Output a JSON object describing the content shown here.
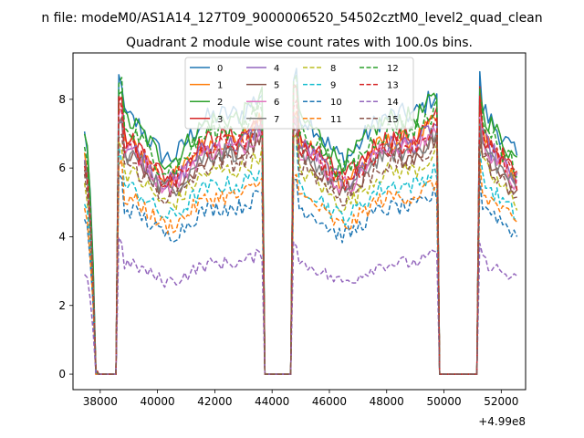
{
  "chart_data": {
    "type": "line",
    "suptitle": "n file: modeM0/AS1A14_127T09_9000006520_54502cztM0_level2_quad_clean",
    "title": "Quadrant 2 module wise count rates with 100.0s bins.",
    "xlabel": "",
    "ylabel": "",
    "x_offset_label": "+4.99e8",
    "xlim": [
      37050,
      52850
    ],
    "ylim": [
      -0.45,
      9.35
    ],
    "xticks": [
      38000,
      40000,
      42000,
      44000,
      46000,
      48000,
      50000,
      52000
    ],
    "xtick_labels": [
      "38000",
      "40000",
      "42000",
      "44000",
      "46000",
      "48000",
      "50000",
      "52000"
    ],
    "yticks": [
      0,
      2,
      4,
      6,
      8
    ],
    "ytick_labels": [
      "0",
      "2",
      "4",
      "6",
      "8"
    ],
    "legend_position": "upper-center",
    "series": [
      {
        "name": "0",
        "color": "#1f77b4",
        "linestyle": "solid",
        "level": 7.0,
        "spike": 8.6
      },
      {
        "name": "1",
        "color": "#ff7f0e",
        "linestyle": "solid",
        "level": 6.3,
        "spike": 7.6
      },
      {
        "name": "2",
        "color": "#2ca02c",
        "linestyle": "solid",
        "level": 6.9,
        "spike": 8.4
      },
      {
        "name": "3",
        "color": "#d62728",
        "linestyle": "solid",
        "level": 6.4,
        "spike": 8.2
      },
      {
        "name": "4",
        "color": "#9467bd",
        "linestyle": "solid",
        "level": 6.2,
        "spike": 7.4
      },
      {
        "name": "5",
        "color": "#8c564b",
        "linestyle": "solid",
        "level": 5.9,
        "spike": 7.2
      },
      {
        "name": "6",
        "color": "#e377c2",
        "linestyle": "solid",
        "level": 6.1,
        "spike": 7.5
      },
      {
        "name": "7",
        "color": "#7f7f7f",
        "linestyle": "solid",
        "level": 6.0,
        "spike": 7.3
      },
      {
        "name": "8",
        "color": "#bcbd22",
        "linestyle": "dashed",
        "level": 5.5,
        "spike": 6.8
      },
      {
        "name": "9",
        "color": "#17becf",
        "linestyle": "dashed",
        "level": 5.1,
        "spike": 6.4
      },
      {
        "name": "10",
        "color": "#1f77b4",
        "linestyle": "dashed",
        "level": 4.5,
        "spike": 5.7
      },
      {
        "name": "11",
        "color": "#ff7f0e",
        "linestyle": "dashed",
        "level": 4.8,
        "spike": 6.0
      },
      {
        "name": "12",
        "color": "#2ca02c",
        "linestyle": "dashed",
        "level": 6.6,
        "spike": 8.6
      },
      {
        "name": "13",
        "color": "#d62728",
        "linestyle": "dashed",
        "level": 6.2,
        "spike": 8.0
      },
      {
        "name": "14",
        "color": "#9467bd",
        "linestyle": "dashed",
        "level": 3.0,
        "spike": 3.9
      },
      {
        "name": "15",
        "color": "#8c564b",
        "linestyle": "dashed",
        "level": 5.7,
        "spike": 7.0
      }
    ],
    "segments": [
      {
        "x_start": 37450,
        "x_end": 37850,
        "mode": "decay"
      },
      {
        "x_start": 37950,
        "x_end": 38550,
        "mode": "zero"
      },
      {
        "x_start": 38650,
        "x_end": 43650,
        "mode": "orbit"
      },
      {
        "x_start": 43750,
        "x_end": 44650,
        "mode": "zero"
      },
      {
        "x_start": 44750,
        "x_end": 49750,
        "mode": "orbit"
      },
      {
        "x_start": 49850,
        "x_end": 51150,
        "mode": "zero"
      },
      {
        "x_start": 51250,
        "x_end": 52550,
        "mode": "orbit_short"
      }
    ]
  }
}
